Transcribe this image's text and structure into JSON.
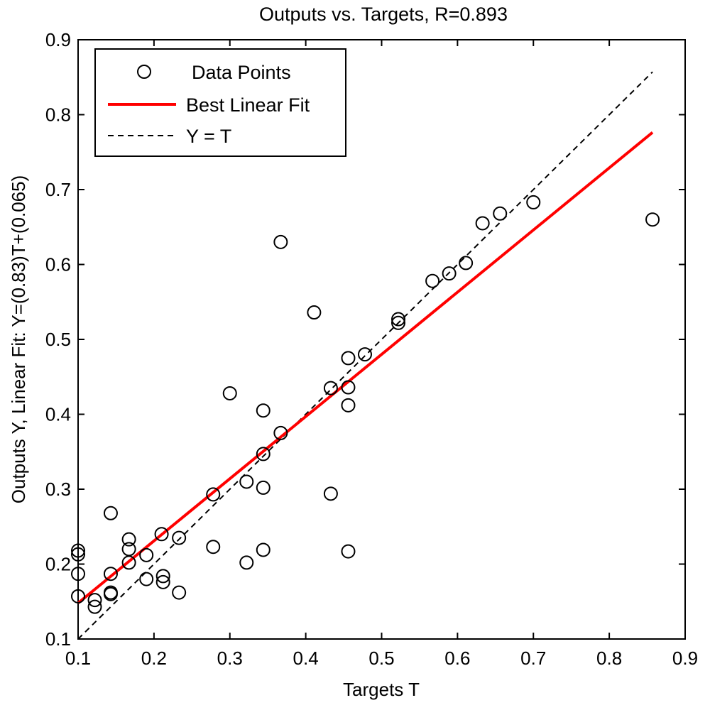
{
  "chart_data": {
    "type": "scatter",
    "title": "Outputs vs. Targets, R=0.893",
    "xlabel": "Targets T",
    "ylabel": "Outputs Y,  Linear Fit:  Y=(0.83)T+(0.065)",
    "xlim": [
      0.1,
      0.9
    ],
    "ylim": [
      0.1,
      0.9
    ],
    "xticks": [
      "0.1",
      "0.2",
      "0.3",
      "0.4",
      "0.5",
      "0.6",
      "0.7",
      "0.8",
      "0.9"
    ],
    "yticks": [
      "0.1",
      "0.2",
      "0.3",
      "0.4",
      "0.5",
      "0.6",
      "0.7",
      "0.8",
      "0.9"
    ],
    "grid": false,
    "legend_position": "top-left",
    "legend": {
      "data_points": "Data Points",
      "best_fit": "Best Linear Fit",
      "identity": "Y = T"
    },
    "colors": {
      "points": "#000000",
      "best_fit": "#ff0000",
      "identity": "#000000"
    },
    "best_fit": {
      "slope": 0.83,
      "intercept": 0.065,
      "x_range": [
        0.1,
        0.857
      ]
    },
    "identity_line": {
      "x_range": [
        0.1,
        0.857
      ]
    },
    "points": [
      {
        "x": 0.1,
        "y": 0.218
      },
      {
        "x": 0.1,
        "y": 0.213
      },
      {
        "x": 0.1,
        "y": 0.187
      },
      {
        "x": 0.1,
        "y": 0.157
      },
      {
        "x": 0.122,
        "y": 0.143
      },
      {
        "x": 0.122,
        "y": 0.152
      },
      {
        "x": 0.143,
        "y": 0.268
      },
      {
        "x": 0.143,
        "y": 0.187
      },
      {
        "x": 0.143,
        "y": 0.162
      },
      {
        "x": 0.143,
        "y": 0.16
      },
      {
        "x": 0.167,
        "y": 0.233
      },
      {
        "x": 0.167,
        "y": 0.22
      },
      {
        "x": 0.167,
        "y": 0.202
      },
      {
        "x": 0.19,
        "y": 0.212
      },
      {
        "x": 0.19,
        "y": 0.18
      },
      {
        "x": 0.21,
        "y": 0.24
      },
      {
        "x": 0.212,
        "y": 0.184
      },
      {
        "x": 0.212,
        "y": 0.176
      },
      {
        "x": 0.233,
        "y": 0.235
      },
      {
        "x": 0.233,
        "y": 0.162
      },
      {
        "x": 0.278,
        "y": 0.293
      },
      {
        "x": 0.278,
        "y": 0.223
      },
      {
        "x": 0.3,
        "y": 0.428
      },
      {
        "x": 0.322,
        "y": 0.31
      },
      {
        "x": 0.322,
        "y": 0.202
      },
      {
        "x": 0.344,
        "y": 0.405
      },
      {
        "x": 0.344,
        "y": 0.347
      },
      {
        "x": 0.344,
        "y": 0.302
      },
      {
        "x": 0.344,
        "y": 0.219
      },
      {
        "x": 0.367,
        "y": 0.63
      },
      {
        "x": 0.367,
        "y": 0.375
      },
      {
        "x": 0.411,
        "y": 0.536
      },
      {
        "x": 0.433,
        "y": 0.435
      },
      {
        "x": 0.433,
        "y": 0.294
      },
      {
        "x": 0.456,
        "y": 0.475
      },
      {
        "x": 0.456,
        "y": 0.436
      },
      {
        "x": 0.456,
        "y": 0.412
      },
      {
        "x": 0.456,
        "y": 0.217
      },
      {
        "x": 0.478,
        "y": 0.48
      },
      {
        "x": 0.522,
        "y": 0.527
      },
      {
        "x": 0.522,
        "y": 0.522
      },
      {
        "x": 0.567,
        "y": 0.578
      },
      {
        "x": 0.589,
        "y": 0.588
      },
      {
        "x": 0.611,
        "y": 0.602
      },
      {
        "x": 0.633,
        "y": 0.655
      },
      {
        "x": 0.656,
        "y": 0.668
      },
      {
        "x": 0.7,
        "y": 0.683
      },
      {
        "x": 0.857,
        "y": 0.66
      }
    ]
  }
}
